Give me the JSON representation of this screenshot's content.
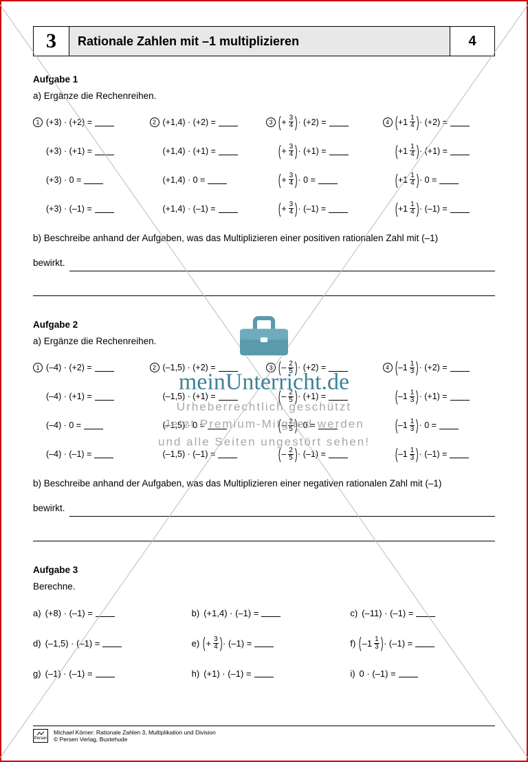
{
  "header": {
    "grade": "3",
    "title": "Rationale Zahlen mit –1 multiplizieren",
    "page": "4"
  },
  "aufgabe1": {
    "title": "Aufgabe 1",
    "sub_a": "a) Ergänze die Rechenreihen.",
    "cols": [
      {
        "num": "1",
        "rows": [
          "(+3) · (+2)  =",
          "(+3) · (+1)  =",
          "(+3) ·   0    =",
          "(+3) · (–1)  ="
        ]
      },
      {
        "num": "2",
        "rows": [
          "(+1,4) · (+2)  =",
          "(+1,4) · (+1)  =",
          "(+1,4) ·   0    =",
          "(+1,4) · (–1)  ="
        ]
      },
      {
        "num": "3",
        "frac": {
          "n": "3",
          "d": "4",
          "pre": "+"
        },
        "mults": [
          "(+2)",
          "(+1)",
          "0",
          "(–1)"
        ]
      },
      {
        "num": "4",
        "frac": {
          "n": "1",
          "d": "4",
          "pre": "+1"
        },
        "mults": [
          "(+2)",
          "(+1)",
          "0",
          "(–1)"
        ]
      }
    ],
    "sub_b_1": "b) Beschreibe anhand der Aufgaben, was das Multiplizieren einer positiven rationalen Zahl mit (–1)",
    "sub_b_2": "bewirkt."
  },
  "aufgabe2": {
    "title": "Aufgabe 2",
    "sub_a": "a) Ergänze die Rechenreihen.",
    "cols": [
      {
        "num": "1",
        "rows": [
          "(–4) · (+2)  =",
          "(–4) · (+1)  =",
          "(–4) · 0      =",
          "(–4) · (–1)  ="
        ]
      },
      {
        "num": "2",
        "rows": [
          "(–1,5) · (+2)  =",
          "(–1,5) · (+1)  =",
          "(–1,5) ·   0    =",
          "(–1,5) · (–1)  ="
        ]
      },
      {
        "num": "3",
        "frac": {
          "n": "2",
          "d": "5",
          "pre": "–"
        },
        "mults": [
          "(+2)",
          "(+1)",
          "0",
          "(–1)"
        ]
      },
      {
        "num": "4",
        "frac": {
          "n": "1",
          "d": "3",
          "pre": "–1"
        },
        "mults": [
          "(+2)",
          "(+1)",
          "0",
          "(–1)"
        ]
      }
    ],
    "sub_b_1": "b) Beschreibe anhand der Aufgaben, was das Multiplizieren einer negativen rationalen Zahl mit (–1)",
    "sub_b_2": "bewirkt."
  },
  "aufgabe3": {
    "title": "Aufgabe 3",
    "sub": "Berechne.",
    "items": [
      {
        "l": "a)",
        "t": "(+8) · (–1)    ="
      },
      {
        "l": "b)",
        "t": "(+1,4) · (–1) ="
      },
      {
        "l": "c)",
        "t": "(–11) · (–1)  ="
      },
      {
        "l": "d)",
        "t": "(–1,5) · (–1)  ="
      },
      {
        "l": "e)",
        "frac": {
          "n": "3",
          "d": "4",
          "pre": "+"
        },
        "post": " · (–1)  ="
      },
      {
        "l": "f)",
        "frac": {
          "n": "1",
          "d": "3",
          "pre": "–1"
        },
        "post": " · (–1)  ="
      },
      {
        "l": "g)",
        "t": "(–1) · (–1)    ="
      },
      {
        "l": "h)",
        "t": "(+1) · (–1)  ="
      },
      {
        "l": "i)",
        "t": "0 · (–1)       ="
      }
    ]
  },
  "watermark": {
    "brand": "meinUnterricht.de",
    "line1": "Urheberrechtlich geschützt",
    "line2": "Jetzt Premium-Mitglied werden",
    "line3": "und alle Seiten ungestört sehen!",
    "case_color": "#5a9aad"
  },
  "footer": {
    "line1": "Michael Körner: Rationale Zahlen 3, Multiplikation und Division",
    "line2": "© Persen Verlag, Buxtehude",
    "logo": "Persen"
  },
  "colors": {
    "border": "#c00",
    "header_bg": "#e8e8e8",
    "diag": "#bbb"
  },
  "diag_angle": 55
}
